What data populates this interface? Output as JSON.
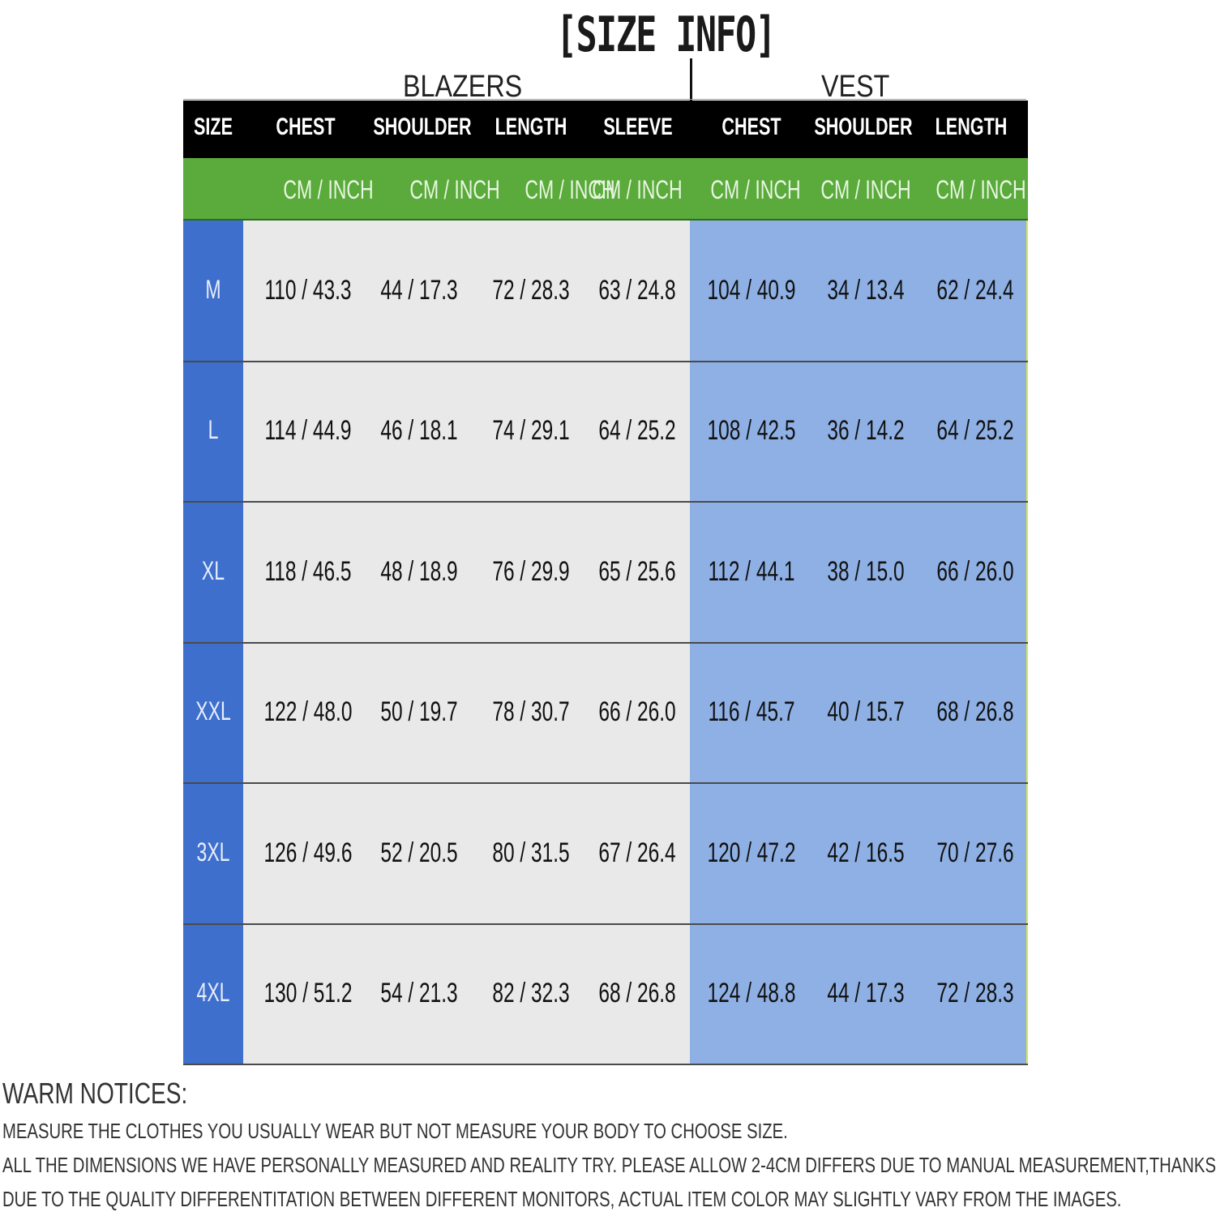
{
  "title": "[SIZE INFO]",
  "groups": {
    "blazers": "BLAZERS",
    "vest": "VEST"
  },
  "headers": [
    "SIZE",
    "CHEST",
    "SHOULDER",
    "LENGTH",
    "SLEEVE",
    "CHEST",
    "SHOULDER",
    "LENGTH"
  ],
  "units": [
    "CM  /  INCH",
    "CM  /  INCH",
    "CM / INCH",
    "CM  /  INCH",
    "CM  /  INCH",
    "CM  /  INCH",
    "CM  /  INCH"
  ],
  "rows": [
    {
      "size": "M",
      "values": [
        "110 / 43.3",
        "44 / 17.3",
        "72 / 28.3",
        "63 / 24.8",
        "104 / 40.9",
        "34 / 13.4",
        "62 / 24.4"
      ]
    },
    {
      "size": "L",
      "values": [
        "114 / 44.9",
        "46 / 18.1",
        "74 / 29.1",
        "64 / 25.2",
        "108 / 42.5",
        "36 / 14.2",
        "64 / 25.2"
      ]
    },
    {
      "size": "XL",
      "values": [
        "118 / 46.5",
        "48 / 18.9",
        "76 / 29.9",
        "65 / 25.6",
        "112 / 44.1",
        "38 / 15.0",
        "66 / 26.0"
      ]
    },
    {
      "size": "XXL",
      "values": [
        "122 / 48.0",
        "50 / 19.7",
        "78 / 30.7",
        "66 / 26.0",
        "116 / 45.7",
        "40 / 15.7",
        "68 / 26.8"
      ]
    },
    {
      "size": "3XL",
      "values": [
        "126 / 49.6",
        "52 / 20.5",
        "80 / 31.5",
        "67 / 26.4",
        "120 / 47.2",
        "42 / 16.5",
        "70 / 27.6"
      ]
    },
    {
      "size": "4XL",
      "values": [
        "130 / 51.2",
        "54 / 21.3",
        "82 / 32.3",
        "68 / 26.8",
        "124 / 48.8",
        "44 / 17.3",
        "72 / 28.3"
      ]
    }
  ],
  "notices": {
    "heading": "WARM NOTICES:",
    "lines": [
      "MEASURE THE CLOTHES YOU USUALLY WEAR BUT NOT MEASURE YOUR BODY TO CHOOSE SIZE.",
      "ALL THE DIMENSIONS WE HAVE PERSONALLY MEASURED AND REALITY TRY. PLEASE ALLOW 2-4CM DIFFERS DUE TO MANUAL MEASUREMENT,THANKS.",
      "DUE TO THE QUALITY DIFFERENTITATION BETWEEN DIFFERENT MONITORS, ACTUAL ITEM COLOR MAY SLIGHTLY VARY FROM THE IMAGES."
    ]
  },
  "colors": {
    "header": "#000000",
    "units_bar": "#5aaa3c",
    "size_column": "#3e6fcc",
    "blazers_area": "#e9e9e9",
    "vest_area": "#8fb0e4"
  }
}
